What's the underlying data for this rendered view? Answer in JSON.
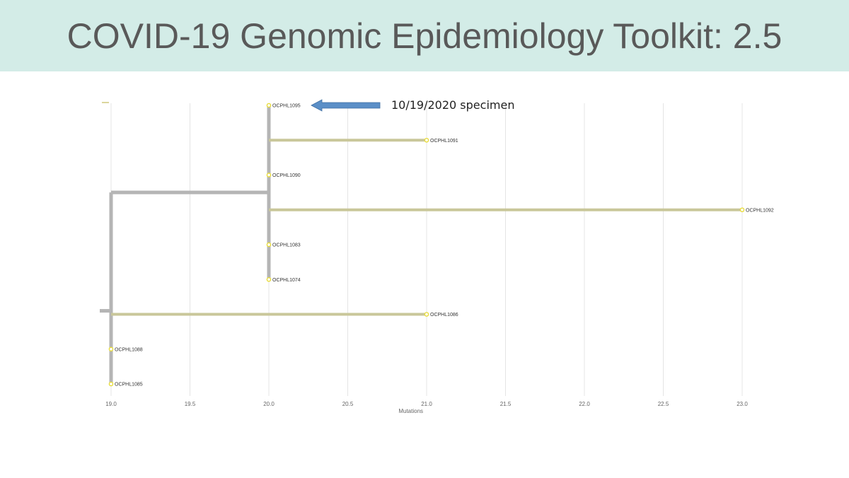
{
  "slide": {
    "title": "COVID-19 Genomic Epidemiology Toolkit: 2.5"
  },
  "chart_data": {
    "type": "phylogenetic-tree",
    "xlabel": "Mutations",
    "xlim": [
      19.0,
      23.0
    ],
    "x_ticks": [
      19.0,
      19.5,
      20.0,
      20.5,
      21.0,
      21.5,
      22.0,
      22.5,
      23.0
    ],
    "grid": true,
    "colors": {
      "internal_branch": "#b5b5b5",
      "leaf_branch": "#c9c79a",
      "node": "#e8dc3c"
    },
    "root": {
      "x": 19.0
    },
    "clades": [
      {
        "id": "clade-1",
        "x": 20.0,
        "parent": "root"
      }
    ],
    "leaves": [
      {
        "name": "OCPHL1095",
        "x": 20.0,
        "parent": "clade-1"
      },
      {
        "name": "OCPHL1091",
        "x": 21.0,
        "parent": "clade-1"
      },
      {
        "name": "OCPHL1090",
        "x": 20.0,
        "parent": "clade-1"
      },
      {
        "name": "OCPHL1092",
        "x": 23.0,
        "parent": "clade-1"
      },
      {
        "name": "OCPHL1083",
        "x": 20.0,
        "parent": "clade-1"
      },
      {
        "name": "OCPHL1074",
        "x": 20.0,
        "parent": "clade-1"
      },
      {
        "name": "OCPHL1086",
        "x": 21.0,
        "parent": "root"
      },
      {
        "name": "OCPHL1088",
        "x": 19.0,
        "parent": "root"
      },
      {
        "name": "OCPHL1085",
        "x": 19.0,
        "parent": "root"
      }
    ],
    "annotation": {
      "text": "10/19/2020 specimen",
      "target": "OCPHL1095",
      "arrow_color": "#5b8fc7"
    }
  }
}
